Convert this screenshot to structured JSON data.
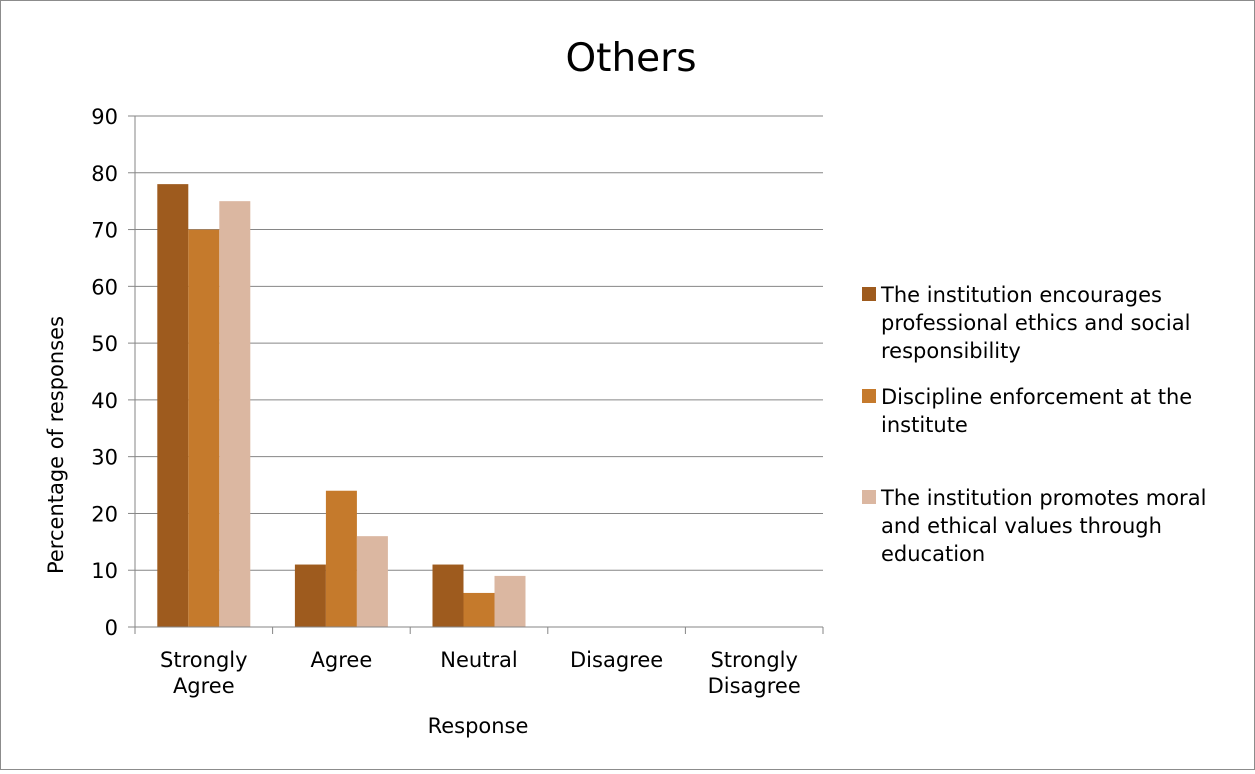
{
  "chart_data": {
    "type": "bar",
    "title": "Others",
    "xlabel": "Response",
    "ylabel": "Percentage of responses",
    "categories": [
      [
        "Strongly",
        "Agree"
      ],
      [
        "Agree"
      ],
      [
        "Neutral"
      ],
      [
        "Disagree"
      ],
      [
        "Strongly",
        "Disagree"
      ]
    ],
    "ylim": [
      0,
      90
    ],
    "yticks": [
      0,
      10,
      20,
      30,
      40,
      50,
      60,
      70,
      80,
      90
    ],
    "grid": true,
    "legend_position": "right",
    "series": [
      {
        "name": "The institution encourages professional ethics and social responsibility",
        "legend_lines": [
          "The institution encourages",
          "professional ethics and social",
          "responsibility"
        ],
        "color": "#9e5b1e",
        "values": [
          78,
          11,
          11,
          0,
          0
        ]
      },
      {
        "name": "Discipline enforcement at the institute",
        "legend_lines": [
          "Discipline enforcement at the",
          "institute"
        ],
        "color": "#c57a2c",
        "values": [
          70,
          24,
          6,
          0,
          0
        ]
      },
      {
        "name": "The institution promotes moral and ethical values through education",
        "legend_lines": [
          "The institution promotes moral",
          "and ethical values through",
          "education"
        ],
        "color": "#dbb7a1",
        "values": [
          75,
          16,
          9,
          0,
          0
        ]
      }
    ]
  }
}
